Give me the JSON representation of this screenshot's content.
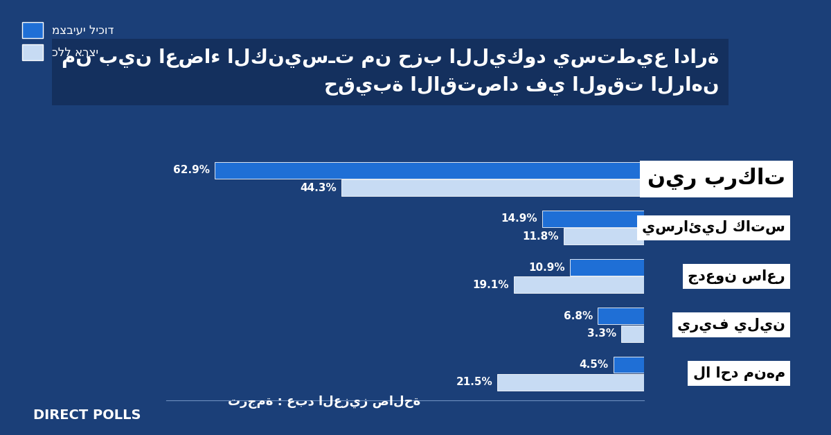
{
  "chart_data": {
    "type": "bar",
    "orientation": "horizontal",
    "title": "من بين اعضاء الكنيسـت من حزب الليكود يستطيع ادارة حقيبة الاقتصاد في الوقت الراهن",
    "categories": [
      "نير بركات",
      "يسرائيل كاتس",
      "جدعون ساعر",
      "يريف يلين",
      "لا احد منهم"
    ],
    "series": [
      {
        "name": "מצביעי ליכוד",
        "color": "#1f6fd6",
        "values": [
          62.9,
          14.9,
          10.9,
          6.8,
          4.5
        ],
        "value_labels": [
          "62.9%",
          "14.9%",
          "10.9%",
          "6.8%",
          "4.5%"
        ]
      },
      {
        "name": "כלל ארצי",
        "color": "#c7dbf3",
        "values": [
          44.3,
          11.8,
          19.1,
          3.3,
          21.5
        ],
        "value_labels": [
          "44.3%",
          "11.8%",
          "19.1%",
          "3.3%",
          "21.5%"
        ]
      }
    ],
    "xlim": [
      0,
      70
    ],
    "data_labels": true,
    "tick_labels": false,
    "grid": false,
    "legend": "upper left",
    "credit": "ترجمة : عبد العزيز صالحة",
    "logo_text": "DIRECT POLLS"
  }
}
